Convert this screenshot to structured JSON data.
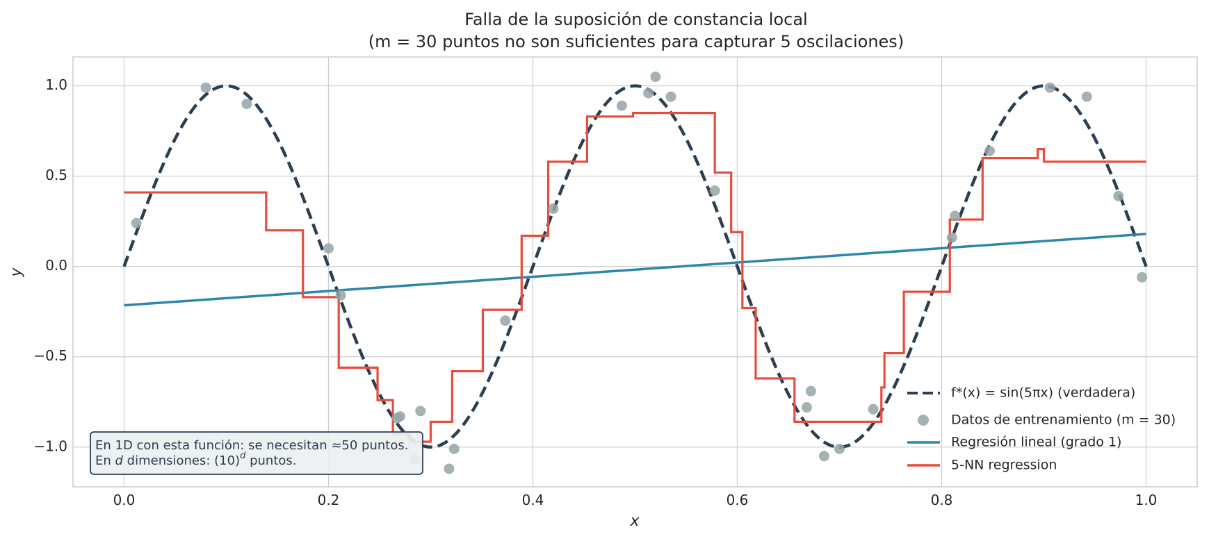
{
  "chart_data": {
    "type": "line",
    "title": [
      "Falla de la suposición de constancia local",
      "(m = 30 puntos no son suficientes para capturar 5 oscilaciones)"
    ],
    "xlabel": "x",
    "ylabel": "y",
    "xlim": [
      -0.05,
      1.05
    ],
    "ylim": [
      -1.22,
      1.16
    ],
    "xticks": [
      0.0,
      0.2,
      0.4,
      0.6,
      0.8,
      1.0
    ],
    "xtick_labels": [
      "0.0",
      "0.2",
      "0.4",
      "0.6",
      "0.8",
      "1.0"
    ],
    "yticks": [
      1.0,
      0.5,
      0.0,
      -0.5,
      -1.0
    ],
    "ytick_labels": [
      "1.0",
      "0.5",
      "0.0",
      "−0.5",
      "−1.0"
    ],
    "grid": true,
    "legend_position": "lower-right",
    "legend": [
      "f*(x) = sin(5πx) (verdadera)",
      "Datos de entrenamiento (m = 30)",
      "Regresión lineal (grado 1)",
      "5-NN regression"
    ],
    "true_function": {
      "name": "f*(x) = sin(5πx) (verdadera)",
      "x": [
        0.0,
        0.025,
        0.05,
        0.075,
        0.1,
        0.125,
        0.15,
        0.175,
        0.2,
        0.225,
        0.25,
        0.275,
        0.3,
        0.325,
        0.35,
        0.375,
        0.4,
        0.425,
        0.45,
        0.475,
        0.5,
        0.525,
        0.55,
        0.575,
        0.6,
        0.625,
        0.65,
        0.675,
        0.7,
        0.725,
        0.75,
        0.775,
        0.8,
        0.825,
        0.85,
        0.875,
        0.9,
        0.925,
        0.95,
        0.975,
        1.0
      ],
      "y": [
        0.0,
        0.383,
        0.707,
        0.924,
        1.0,
        0.924,
        0.707,
        0.383,
        0.0,
        -0.383,
        -0.707,
        -0.924,
        -1.0,
        -0.924,
        -0.707,
        -0.383,
        0.0,
        0.383,
        0.707,
        0.924,
        1.0,
        0.924,
        0.707,
        0.383,
        0.0,
        -0.383,
        -0.707,
        -0.924,
        -1.0,
        -0.924,
        -0.707,
        -0.383,
        0.0,
        0.383,
        0.707,
        0.924,
        1.0,
        0.924,
        0.707,
        0.383,
        0.0
      ],
      "color": "#2c3e50"
    },
    "training_data": {
      "name": "Datos de entrenamiento (m = 30)",
      "x": [
        0.012,
        0.08,
        0.12,
        0.2,
        0.212,
        0.27,
        0.267,
        0.29,
        0.285,
        0.318,
        0.323,
        0.373,
        0.42,
        0.487,
        0.52,
        0.513,
        0.535,
        0.578,
        0.672,
        0.668,
        0.685,
        0.7,
        0.733,
        0.81,
        0.813,
        0.847,
        0.906,
        0.942,
        0.973,
        0.996
      ],
      "y": [
        0.24,
        0.99,
        0.9,
        0.1,
        -0.16,
        -0.83,
        -0.84,
        -0.8,
        -1.07,
        -1.12,
        -1.01,
        -0.3,
        0.32,
        0.89,
        1.05,
        0.96,
        0.94,
        0.42,
        -0.69,
        -0.78,
        -1.05,
        -1.01,
        -0.79,
        0.16,
        0.28,
        0.64,
        0.99,
        0.94,
        0.39,
        -0.06
      ],
      "color": "#95a5a6"
    },
    "linear_regression": {
      "name": "Regresión lineal (grado 1)",
      "x": [
        0.0,
        1.0
      ],
      "y": [
        -0.215,
        0.18
      ],
      "color": "#2e86ab"
    },
    "knn_regression": {
      "name": "5-NN regression",
      "x": [
        0.0,
        0.139,
        0.139,
        0.175,
        0.175,
        0.203,
        0.203,
        0.21,
        0.21,
        0.248,
        0.248,
        0.263,
        0.263,
        0.28,
        0.28,
        0.3,
        0.3,
        0.321,
        0.321,
        0.351,
        0.351,
        0.389,
        0.389,
        0.415,
        0.415,
        0.42,
        0.42,
        0.453,
        0.453,
        0.498,
        0.498,
        0.501,
        0.501,
        0.578,
        0.578,
        0.594,
        0.594,
        0.605,
        0.605,
        0.618,
        0.618,
        0.656,
        0.656,
        0.741,
        0.741,
        0.744,
        0.744,
        0.763,
        0.763,
        0.808,
        0.808,
        0.84,
        0.84,
        0.894,
        0.894,
        0.9,
        0.9,
        0.905,
        0.905,
        1.0
      ],
      "y": [
        0.41,
        0.41,
        0.2,
        0.2,
        -0.17,
        -0.17,
        -0.17,
        -0.17,
        -0.56,
        -0.56,
        -0.74,
        -0.74,
        -0.93,
        -0.93,
        -0.97,
        -0.97,
        -0.86,
        -0.86,
        -0.58,
        -0.58,
        -0.24,
        -0.24,
        0.17,
        0.17,
        0.58,
        0.58,
        0.58,
        0.58,
        0.83,
        0.83,
        0.85,
        0.85,
        0.85,
        0.85,
        0.52,
        0.52,
        0.19,
        0.19,
        -0.23,
        -0.23,
        -0.62,
        -0.62,
        -0.86,
        -0.86,
        -0.67,
        -0.67,
        -0.48,
        -0.48,
        -0.14,
        -0.14,
        0.26,
        0.26,
        0.6,
        0.6,
        0.65,
        0.65,
        0.58,
        0.58,
        0.58,
        0.58
      ],
      "color": "#e74c3c"
    },
    "annotation": {
      "line1": "En 1D con esta función: se necesitan ≈50 puntos.",
      "line2_prefix": "En ",
      "line2_var": "d",
      "line2_mid": " dimensiones: (10)",
      "line2_sup": "d",
      "line2_suffix": " puntos."
    }
  }
}
